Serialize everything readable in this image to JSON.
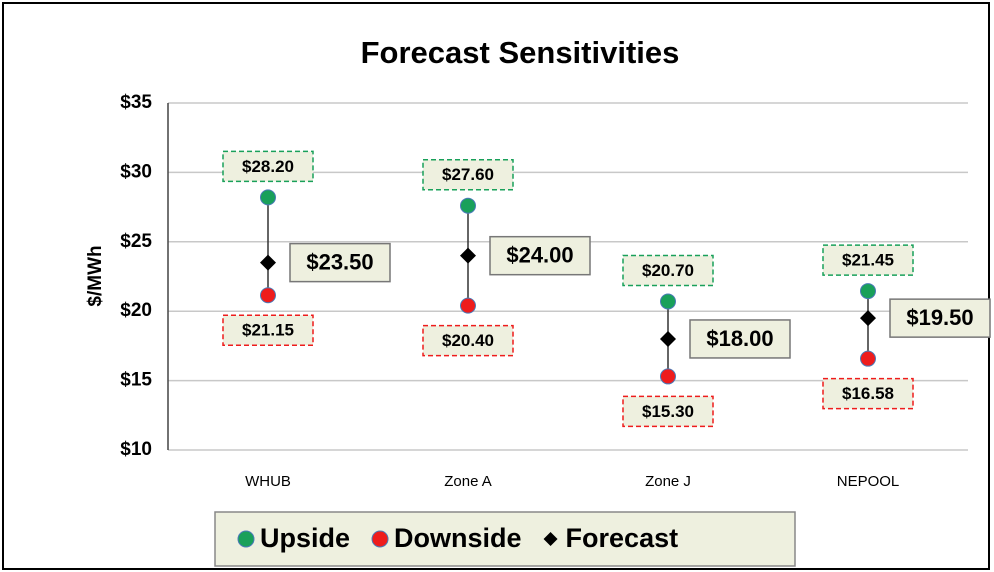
{
  "chart_data": {
    "type": "dot",
    "title": "Forecast Sensitivities",
    "y_label": "$/MWh",
    "categories": [
      "WHUB",
      "Zone A",
      "Zone J",
      "NEPOOL"
    ],
    "series": [
      {
        "name": "Upside",
        "color": "#19a05a",
        "marker": "circle",
        "values": [
          28.2,
          27.6,
          20.7,
          21.45
        ],
        "value_labels": [
          "$28.20",
          "$27.60",
          "$20.70",
          "$21.45"
        ]
      },
      {
        "name": "Downside",
        "color": "#ee1c1c",
        "marker": "circle",
        "values": [
          21.15,
          20.4,
          15.3,
          16.58
        ],
        "value_labels": [
          "$21.15",
          "$20.40",
          "$15.30",
          "$16.58"
        ]
      },
      {
        "name": "Forecast",
        "color": "#000000",
        "marker": "diamond",
        "values": [
          23.5,
          24,
          18,
          19.5
        ],
        "value_labels": [
          "$23.50",
          "$24.00",
          "$18.00",
          "$19.50"
        ]
      }
    ],
    "ylim": [
      10,
      35
    ],
    "yticks": [
      {
        "value": 10,
        "label": "$10"
      },
      {
        "value": 15,
        "label": "$15"
      },
      {
        "value": 20,
        "label": "$20"
      },
      {
        "value": 25,
        "label": "$25"
      },
      {
        "value": 30,
        "label": "$30"
      },
      {
        "value": 35,
        "label": "$35"
      }
    ],
    "grid": true,
    "legend": "bottom"
  }
}
